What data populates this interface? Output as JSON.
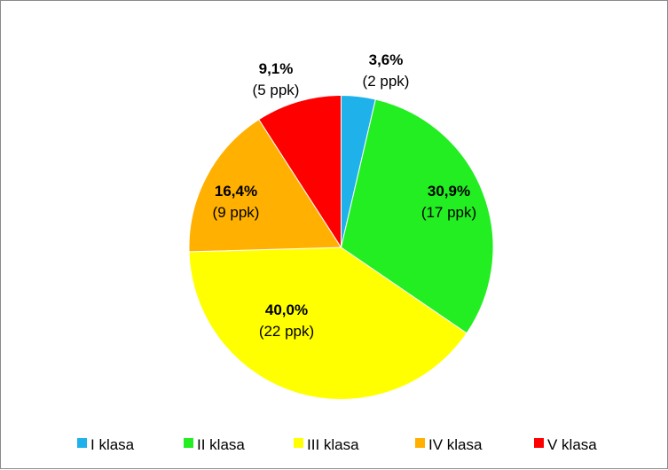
{
  "chart_data": {
    "type": "pie",
    "slices": [
      {
        "label": "I klasa",
        "pct_label": "3,6%",
        "count_label": "(2 ppk)",
        "value": 2,
        "color": "#1fb1ea"
      },
      {
        "label": "II klasa",
        "pct_label": "30,9%",
        "count_label": "(17 ppk)",
        "value": 17,
        "color": "#22ee22"
      },
      {
        "label": "III klasa",
        "pct_label": "40,0%",
        "count_label": "(22 ppk)",
        "value": 22,
        "color": "#ffff00"
      },
      {
        "label": "IV klasa",
        "pct_label": "16,4%",
        "count_label": "(9 ppk)",
        "value": 9,
        "color": "#ffb000"
      },
      {
        "label": "V klasa",
        "pct_label": "9,1%",
        "count_label": "(5 ppk)",
        "value": 5,
        "color": "#ff0000"
      }
    ],
    "legend_position": "bottom"
  }
}
